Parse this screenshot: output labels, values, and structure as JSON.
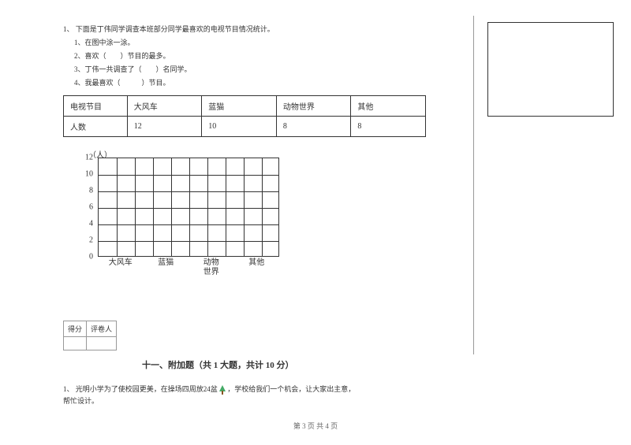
{
  "question": {
    "number": "1、",
    "text": "下面是丁伟同学调查本班部分同学最喜欢的电视节目情况统计。",
    "subs": [
      "1、在图中涂一涂。",
      "2、喜欢（　　）节目的最多。",
      "3、丁伟一共调查了（　　）名同学。",
      "4、我最喜欢（　　　）节目。"
    ]
  },
  "table": {
    "columns": [
      "电视节目",
      "大风车",
      "蓝猫",
      "动物世界",
      "其他"
    ],
    "rows": [
      [
        "人数",
        "12",
        "10",
        "8",
        "8"
      ]
    ],
    "col_widths": [
      "70px",
      "82px",
      "82px",
      "82px",
      "82px"
    ]
  },
  "chart": {
    "y_unit": "（人）",
    "y_ticks": [
      12,
      10,
      8,
      6,
      4,
      2,
      0
    ],
    "y_max": 12,
    "x_labels": [
      "大风车",
      "蓝猫",
      "动物\n世界",
      "其他"
    ],
    "grid_cols": 10,
    "grid_rows": 6
  },
  "score_block": {
    "cells": [
      "得分",
      "评卷人"
    ]
  },
  "section": {
    "title": "十一、附加题（共 1 大题，共计 10 分）"
  },
  "extra": {
    "number": "1、",
    "text_before": "光明小学为了使校园更美，在操场四周放24盆 ",
    "text_after": " ，学校给我们一个机会，让大家出主意，",
    "text_line2": "帮忙设计。"
  },
  "footer": "第 3 页 共 4 页"
}
